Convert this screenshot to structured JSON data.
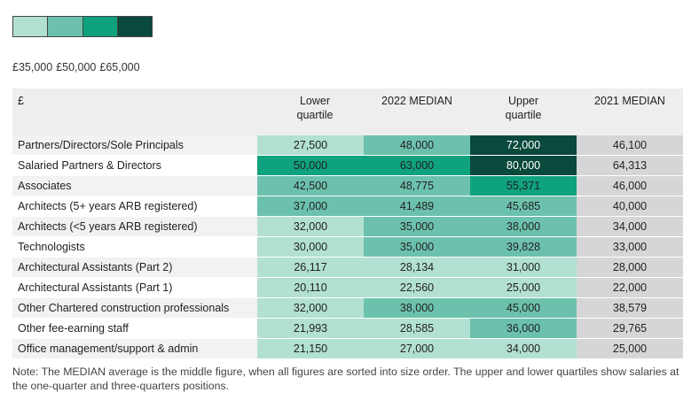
{
  "legend": {
    "colors": [
      "#b2e0d2",
      "#6cc1ad",
      "#0fa27e",
      "#0a4a3c"
    ],
    "labels": [
      "£35,000",
      "£50,000",
      "£65,000"
    ]
  },
  "table": {
    "currency_label": "£",
    "headers": [
      "Lower quartile",
      "2022 MEDIAN",
      "Upper quartile",
      "2021 MEDIAN"
    ],
    "rows": [
      {
        "label": "Partners/Directors/Sole Principals",
        "values": [
          "27,500",
          "48,000",
          "72,000",
          "46,100"
        ],
        "colors": [
          "#b2e0d2",
          "#6cc1ad",
          "#0a4a3c"
        ]
      },
      {
        "label": "Salaried Partners & Directors",
        "values": [
          "50,000",
          "63,000",
          "80,000",
          "64,313"
        ],
        "colors": [
          "#0fa27e",
          "#0fa27e",
          "#0a4a3c"
        ]
      },
      {
        "label": "Associates",
        "values": [
          "42,500",
          "48,775",
          "55,371",
          "46,000"
        ],
        "colors": [
          "#6cc1ad",
          "#6cc1ad",
          "#0fa27e"
        ]
      },
      {
        "label": "Architects (5+ years ARB registered)",
        "values": [
          "37,000",
          "41,489",
          "45,685",
          "40,000"
        ],
        "colors": [
          "#6cc1ad",
          "#6cc1ad",
          "#6cc1ad"
        ]
      },
      {
        "label": "Architects (<5 years ARB registered)",
        "values": [
          "32,000",
          "35,000",
          "38,000",
          "34,000"
        ],
        "colors": [
          "#b2e0d2",
          "#6cc1ad",
          "#6cc1ad"
        ]
      },
      {
        "label": "Technologists",
        "values": [
          "30,000",
          "35,000",
          "39,828",
          "33,000"
        ],
        "colors": [
          "#b2e0d2",
          "#6cc1ad",
          "#6cc1ad"
        ]
      },
      {
        "label": "Architectural Assistants (Part 2)",
        "values": [
          "26,117",
          "28,134",
          "31,000",
          "28,000"
        ],
        "colors": [
          "#b2e0d2",
          "#b2e0d2",
          "#b2e0d2"
        ]
      },
      {
        "label": "Architectural Assistants (Part 1)",
        "values": [
          "20,110",
          "22,560",
          "25,000",
          "22,000"
        ],
        "colors": [
          "#b2e0d2",
          "#b2e0d2",
          "#b2e0d2"
        ]
      },
      {
        "label": "Other Chartered construction professionals",
        "values": [
          "32,000",
          "38,000",
          "45,000",
          "38,579"
        ],
        "colors": [
          "#b2e0d2",
          "#6cc1ad",
          "#6cc1ad"
        ]
      },
      {
        "label": "Other fee-earning staff",
        "values": [
          "21,993",
          "28,585",
          "36,000",
          "29,765"
        ],
        "colors": [
          "#b2e0d2",
          "#b2e0d2",
          "#6cc1ad"
        ]
      },
      {
        "label": "Office management/support & admin",
        "values": [
          "21,150",
          "27,000",
          "34,000",
          "25,000"
        ],
        "colors": [
          "#b2e0d2",
          "#b2e0d2",
          "#b2e0d2"
        ]
      }
    ]
  },
  "note": "Note: The MEDIAN average is the middle figure, when all figures are sorted into size order. The upper and lower quartiles show salaries at the one-quarter and three-quarters positions.",
  "chart_data": {
    "type": "table",
    "title": "",
    "currency": "£",
    "columns": [
      "Lower quartile",
      "2022 MEDIAN",
      "Upper quartile",
      "2021 MEDIAN"
    ],
    "legend_thresholds": [
      "£35,000",
      "£50,000",
      "£65,000"
    ],
    "categories": [
      "Partners/Directors/Sole Principals",
      "Salaried Partners & Directors",
      "Associates",
      "Architects (5+ years ARB registered)",
      "Architects (<5 years ARB registered)",
      "Technologists",
      "Architectural Assistants (Part 2)",
      "Architectural Assistants (Part 1)",
      "Other Chartered construction professionals",
      "Other fee-earning staff",
      "Office management/support & admin"
    ],
    "series": [
      {
        "name": "Lower quartile",
        "values": [
          27500,
          50000,
          42500,
          37000,
          32000,
          30000,
          26117,
          20110,
          32000,
          21993,
          21150
        ]
      },
      {
        "name": "2022 MEDIAN",
        "values": [
          48000,
          63000,
          48775,
          41489,
          35000,
          35000,
          28134,
          22560,
          38000,
          28585,
          27000
        ]
      },
      {
        "name": "Upper quartile",
        "values": [
          72000,
          80000,
          55371,
          45685,
          38000,
          39828,
          31000,
          25000,
          45000,
          36000,
          34000
        ]
      },
      {
        "name": "2021 MEDIAN",
        "values": [
          46100,
          64313,
          46000,
          40000,
          34000,
          33000,
          28000,
          22000,
          38579,
          29765,
          25000
        ]
      }
    ]
  }
}
